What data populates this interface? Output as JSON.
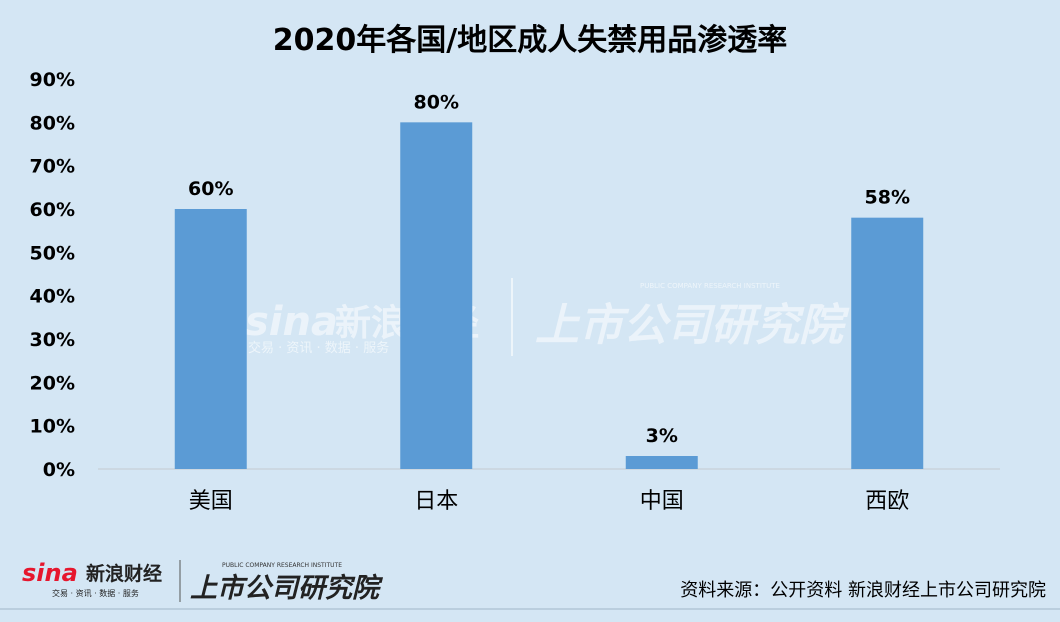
{
  "chart_data": {
    "type": "bar",
    "title": "2020年各国/地区成人失禁用品渗透率",
    "categories": [
      "美国",
      "日本",
      "中国",
      "西欧"
    ],
    "values": [
      60,
      80,
      3,
      58
    ],
    "data_labels": [
      "60%",
      "80%",
      "3%",
      "58%"
    ],
    "yticks": [
      "0%",
      "10%",
      "20%",
      "30%",
      "40%",
      "50%",
      "60%",
      "70%",
      "80%",
      "90%"
    ],
    "ylim": [
      0,
      90
    ],
    "grid": false,
    "legend": "none",
    "bar_color": "#5b9bd5"
  },
  "source": "资料来源：公开资料  新浪财经上市公司研究院",
  "watermark": {
    "sina": "sina",
    "sina_cn": "新浪财经",
    "sina_sub": "交易 · 资讯 · 数据 · 服务",
    "institute": "上市公司研究院",
    "institute_en": "PUBLIC COMPANY RESEARCH INSTITUTE"
  },
  "footer_logo": {
    "sina": "sina",
    "sina_cn": "新浪财经",
    "sina_sub": "交易 · 资讯 · 数据 · 服务",
    "institute": "上市公司研究院",
    "institute_en": "PUBLIC COMPANY RESEARCH INSTITUTE"
  },
  "colors": {
    "background": "#d4e6f4",
    "bar": "#5b9bd5",
    "sina_red": "#e6162d",
    "axis": "#c9d3dc"
  }
}
